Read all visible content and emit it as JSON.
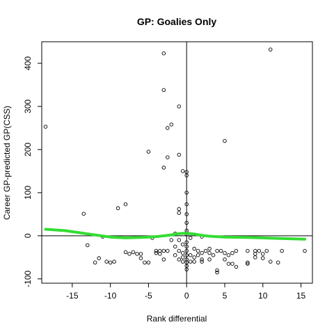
{
  "chart_data": {
    "type": "scatter",
    "title": "GP: Goalies Only",
    "xlabel": "Rank differential",
    "ylabel": "Career GP-predicted GP(CSS)",
    "xlim": [
      -19,
      16.5
    ],
    "ylim": [
      -110,
      450
    ],
    "x_ticks": [
      -15,
      -10,
      -5,
      0,
      5,
      10,
      15
    ],
    "x_tick_labels": [
      "-15",
      "-10",
      "-5",
      "0",
      "5",
      "10",
      "15"
    ],
    "y_ticks": [
      -100,
      0,
      100,
      200,
      300,
      400
    ],
    "y_tick_labels": [
      "-100",
      "0",
      "100",
      "200",
      "300",
      "400"
    ],
    "reference_lines": {
      "x": 0,
      "y": 0
    },
    "smooth_color": "#33dd33",
    "point_color": "#000000",
    "points": [
      [
        -18.5,
        253
      ],
      [
        -13.5,
        51
      ],
      [
        -13,
        -22
      ],
      [
        -12,
        -62
      ],
      [
        -11.5,
        -52
      ],
      [
        -11,
        -2
      ],
      [
        -10.5,
        -60
      ],
      [
        -10,
        -62
      ],
      [
        -9.5,
        -60
      ],
      [
        -9,
        64
      ],
      [
        -8,
        73
      ],
      [
        -8,
        -38
      ],
      [
        -7.5,
        -42
      ],
      [
        -7,
        -38
      ],
      [
        -6.5,
        -42
      ],
      [
        -6,
        -42
      ],
      [
        -6,
        -52
      ],
      [
        -5.5,
        -62
      ],
      [
        -5,
        -62
      ],
      [
        -5,
        195
      ],
      [
        -4.5,
        -5
      ],
      [
        -4,
        -35
      ],
      [
        -4,
        -40
      ],
      [
        -3.5,
        -35
      ],
      [
        -3.5,
        -42
      ],
      [
        -3,
        423
      ],
      [
        -3,
        338
      ],
      [
        -3,
        158
      ],
      [
        -3,
        -35
      ],
      [
        -3,
        -55
      ],
      [
        -2.5,
        250
      ],
      [
        -2.5,
        182
      ],
      [
        -2.5,
        -35
      ],
      [
        -2,
        258
      ],
      [
        -2,
        -10
      ],
      [
        -1.5,
        -25
      ],
      [
        -1.5,
        -45
      ],
      [
        -1.5,
        5
      ],
      [
        -1,
        300
      ],
      [
        -1,
        188
      ],
      [
        -1,
        62
      ],
      [
        -1,
        53
      ],
      [
        -1,
        -55
      ],
      [
        -1,
        -10
      ],
      [
        -1,
        -35
      ],
      [
        -0.5,
        150
      ],
      [
        -0.5,
        -40
      ],
      [
        -0.5,
        -20
      ],
      [
        -0.5,
        -60
      ],
      [
        -0.5,
        -50
      ],
      [
        0,
        148
      ],
      [
        0,
        140
      ],
      [
        0,
        100
      ],
      [
        0,
        73
      ],
      [
        0,
        50
      ],
      [
        0,
        30
      ],
      [
        0,
        12
      ],
      [
        0,
        3
      ],
      [
        0,
        -15
      ],
      [
        0,
        -25
      ],
      [
        0,
        -35
      ],
      [
        0,
        -45
      ],
      [
        0,
        -55
      ],
      [
        0,
        -62
      ],
      [
        0,
        -70
      ],
      [
        0,
        -78
      ],
      [
        0.5,
        -60
      ],
      [
        0.5,
        -45
      ],
      [
        0.5,
        -5
      ],
      [
        1,
        -30
      ],
      [
        1,
        -50
      ],
      [
        1,
        -60
      ],
      [
        1.5,
        -35
      ],
      [
        1.5,
        -45
      ],
      [
        2,
        -40
      ],
      [
        2,
        -55
      ],
      [
        2,
        -60
      ],
      [
        2,
        -2
      ],
      [
        2.5,
        -35
      ],
      [
        3,
        -30
      ],
      [
        3,
        -40
      ],
      [
        3,
        -55
      ],
      [
        3.5,
        -45
      ],
      [
        4,
        -35
      ],
      [
        4,
        -80
      ],
      [
        4,
        -85
      ],
      [
        4.5,
        -35
      ],
      [
        5,
        -40
      ],
      [
        5,
        -55
      ],
      [
        5,
        220
      ],
      [
        5.5,
        -45
      ],
      [
        5.5,
        -65
      ],
      [
        6,
        -40
      ],
      [
        6,
        -65
      ],
      [
        6.5,
        -72
      ],
      [
        6.5,
        -35
      ],
      [
        8,
        -35
      ],
      [
        8,
        -62
      ],
      [
        8,
        -65
      ],
      [
        9,
        -35
      ],
      [
        9,
        -42
      ],
      [
        9,
        -50
      ],
      [
        9.5,
        -35
      ],
      [
        10,
        -42
      ],
      [
        10,
        -52
      ],
      [
        10.5,
        -35
      ],
      [
        11,
        432
      ],
      [
        11,
        -60
      ],
      [
        12,
        -62
      ],
      [
        12.5,
        -35
      ],
      [
        15.5,
        -35
      ]
    ],
    "smooth": [
      [
        -18.5,
        15
      ],
      [
        -16,
        12
      ],
      [
        -14,
        7
      ],
      [
        -12,
        2
      ],
      [
        -10,
        -3
      ],
      [
        -8,
        -5
      ],
      [
        -6,
        -4
      ],
      [
        -4,
        -2
      ],
      [
        -2,
        2
      ],
      [
        -1,
        5
      ],
      [
        0,
        6
      ],
      [
        1,
        4
      ],
      [
        2,
        1
      ],
      [
        3,
        -1
      ],
      [
        5,
        -3
      ],
      [
        8,
        -4
      ],
      [
        10,
        -5
      ],
      [
        12,
        -6
      ],
      [
        14,
        -7
      ],
      [
        15.5,
        -8
      ]
    ]
  }
}
